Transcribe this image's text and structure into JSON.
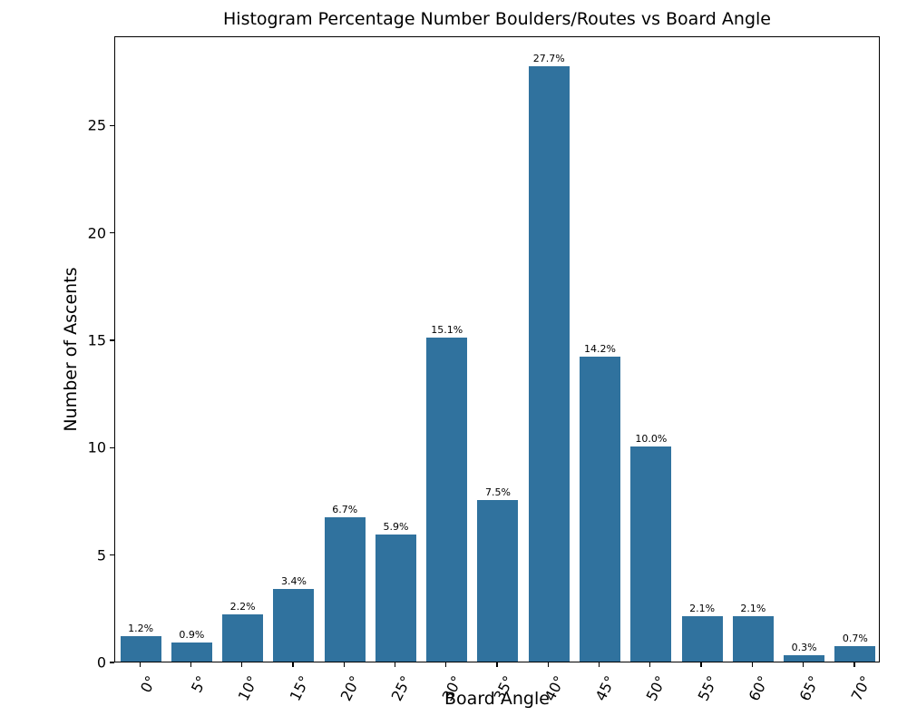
{
  "figure": {
    "background": "#ffffff",
    "axis_color": "#000000"
  },
  "chart_data": {
    "type": "bar",
    "title": "Histogram Percentage Number Boulders/Routes vs Board Angle",
    "xlabel": "Board Angle",
    "ylabel": "Number of Ascents",
    "categories": [
      "0°",
      "5°",
      "10°",
      "15°",
      "20°",
      "25°",
      "30°",
      "35°",
      "40°",
      "45°",
      "50°",
      "55°",
      "60°",
      "65°",
      "70°"
    ],
    "values": [
      1.2,
      0.9,
      2.2,
      3.4,
      6.7,
      5.9,
      15.1,
      7.5,
      27.7,
      14.2,
      10.0,
      2.1,
      2.1,
      0.3,
      0.7
    ],
    "bar_labels": [
      "1.2%",
      "0.9%",
      "2.2%",
      "3.4%",
      "6.7%",
      "5.9%",
      "15.1%",
      "7.5%",
      "27.7%",
      "14.2%",
      "10.0%",
      "2.1%",
      "2.1%",
      "0.3%",
      "0.7%"
    ],
    "yticks": [
      0,
      5,
      10,
      15,
      20,
      25
    ],
    "ylim": [
      0,
      29.15
    ],
    "xlim_categories": 15,
    "bar_color": "#30729E",
    "bar_width_fraction": 0.8,
    "x_tick_rotation_deg": 63,
    "grid": false,
    "legend": false
  }
}
